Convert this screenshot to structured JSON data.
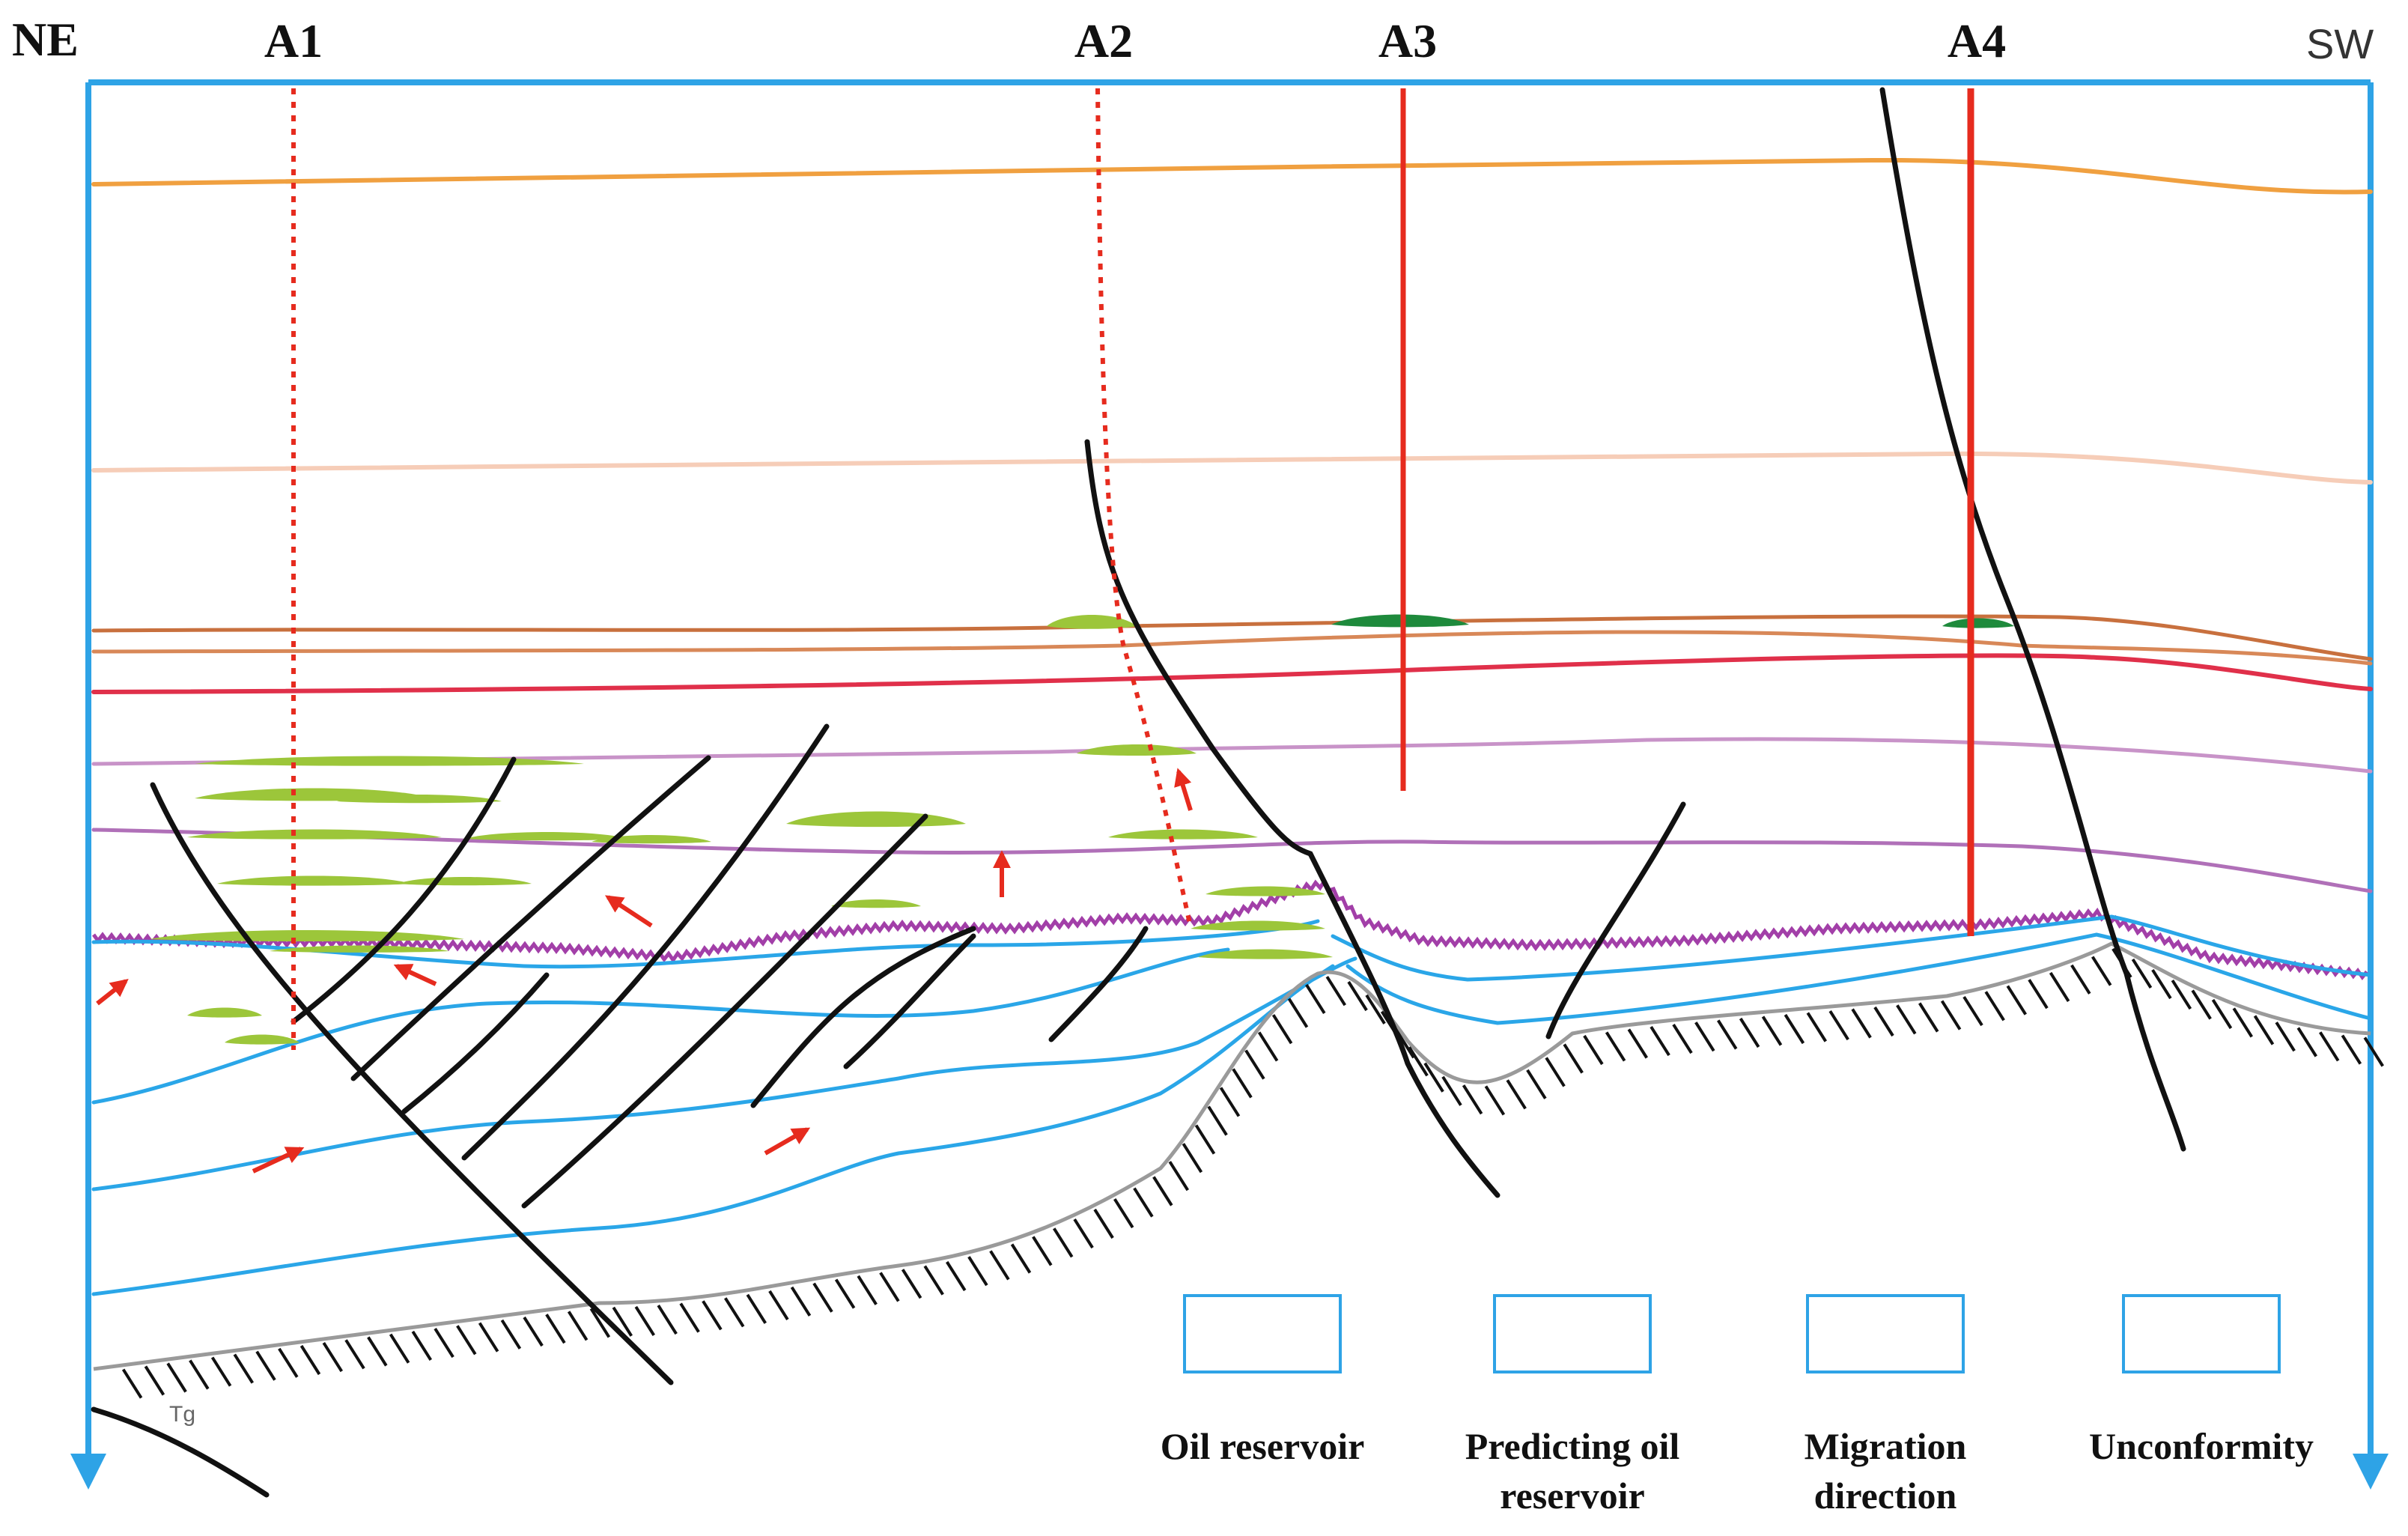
{
  "orientation": {
    "left": "NE",
    "right": "SW"
  },
  "wells": [
    {
      "id": "A1",
      "line_style": "dotted"
    },
    {
      "id": "A2",
      "line_style": "dotted"
    },
    {
      "id": "A3",
      "line_style": "solid"
    },
    {
      "id": "A4",
      "line_style": "solid"
    }
  ],
  "basement_label": "Tg",
  "legend": [
    {
      "symbol": "oil-reservoir",
      "label_lines": [
        "Oil reservoir"
      ],
      "color": "#1e8a3c"
    },
    {
      "symbol": "predicting-oil-reservoir",
      "label_lines": [
        "Predicting oil",
        "reservoir"
      ],
      "color": "#9cc63a"
    },
    {
      "symbol": "migration-direction",
      "label_lines": [
        "Migration",
        "direction"
      ],
      "color": "#e62b1e"
    },
    {
      "symbol": "unconformity",
      "label_lines": [
        "Unconformity"
      ],
      "color": "#a23fa8"
    }
  ],
  "colors": {
    "frame": "#2ea3e6",
    "horizon_orange": "#f0a040",
    "horizon_peach": "#f6cdb8",
    "horizon_brown": "#c8703e",
    "horizon_red": "#e0304a",
    "horizon_violet": "#c893c8",
    "unconformity": "#a23fa8",
    "blue_beds": "#2aa6e8",
    "fault": "#111111",
    "well": "#e62b1e"
  }
}
